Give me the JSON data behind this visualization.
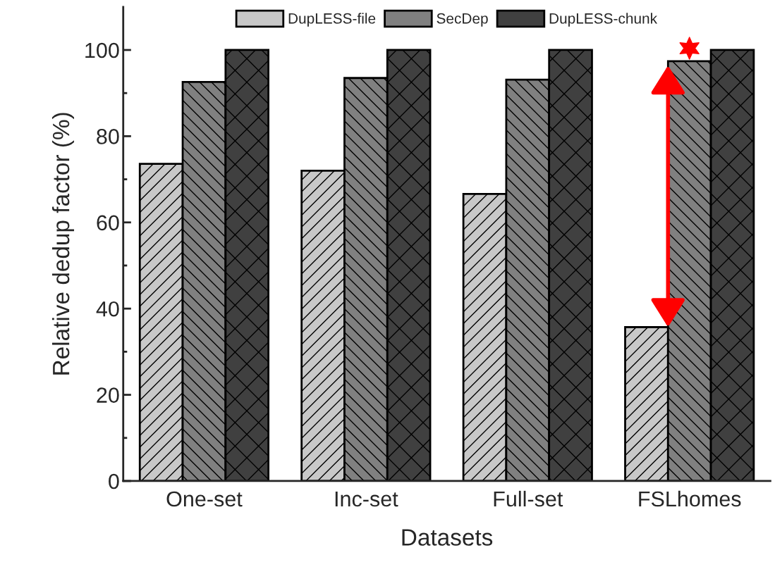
{
  "chart_data": {
    "type": "bar",
    "xlabel": "Datasets",
    "ylabel": "Relative dedup factor (%)",
    "categories": [
      "One-set",
      "Inc-set",
      "Full-set",
      "FSLhomes"
    ],
    "series": [
      {
        "name": "DupLESS-file",
        "color": "#c8c8c8",
        "values": [
          73.6,
          72.0,
          66.6,
          35.7
        ]
      },
      {
        "name": "SecDep",
        "color": "#808080",
        "values": [
          92.6,
          93.5,
          93.1,
          97.4
        ]
      },
      {
        "name": "DupLESS-chunk",
        "color": "#404040",
        "values": [
          100,
          100,
          100,
          100
        ]
      }
    ],
    "ylim": [
      0,
      110
    ],
    "yticks": [
      0,
      {
        "value": 10,
        "label": null
      },
      20,
      {
        "value": 30,
        "label": null
      },
      40,
      {
        "value": 50,
        "label": null
      },
      60,
      {
        "value": 70,
        "label": null
      },
      80,
      {
        "value": 90,
        "label": null
      },
      100
    ],
    "legend": "top",
    "grid": false
  }
}
